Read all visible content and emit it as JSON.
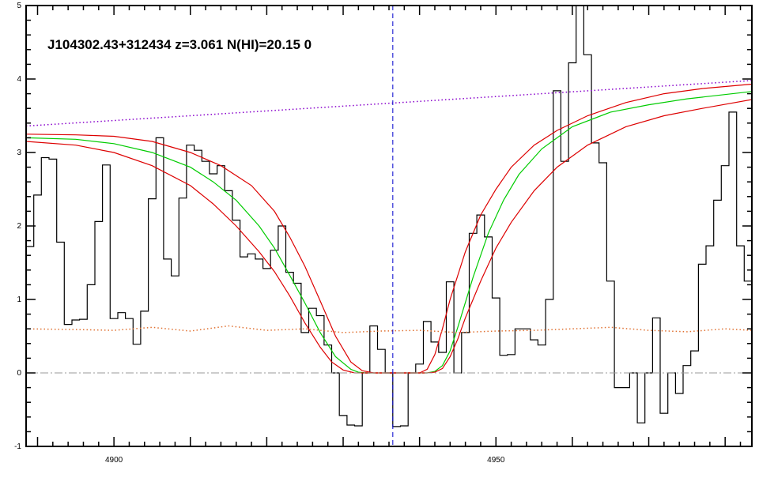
{
  "chart_data": {
    "type": "line",
    "title": "J104302.43+312434 z=3.061 N(HI)=20.15 0",
    "xlabel": "",
    "ylabel": "",
    "xlim": [
      4888.5,
      4983.5
    ],
    "ylim": [
      -1,
      5
    ],
    "x_ticks": [
      4900,
      4950
    ],
    "x_tick_labels": [
      "4900",
      "4950"
    ],
    "y_ticks": [
      -1,
      0,
      1,
      2,
      3,
      4,
      5
    ],
    "y_tick_labels": [
      "-1",
      "0",
      "1",
      "2",
      "3",
      "4",
      "5"
    ],
    "grid": false,
    "legend": "none",
    "line_center_x": 4936.5,
    "series": [
      {
        "style": "steps",
        "color": "#000000",
        "x": [
          4889.0,
          4890.0,
          4891.0,
          4892.0,
          4893.0,
          4894.0,
          4895.0,
          4896.0,
          4897.0,
          4898.0,
          4899.0,
          4900.0,
          4901.0,
          4902.0,
          4903.0,
          4904.0,
          4905.0,
          4906.0,
          4907.0,
          4908.0,
          4909.0,
          4910.0,
          4911.0,
          4912.0,
          4913.0,
          4914.0,
          4915.0,
          4916.0,
          4917.0,
          4918.0,
          4919.0,
          4920.0,
          4921.0,
          4922.0,
          4923.0,
          4924.0,
          4925.0,
          4926.0,
          4927.0,
          4928.0,
          4929.0,
          4930.0,
          4931.0,
          4932.0,
          4933.0,
          4934.0,
          4935.0,
          4936.0,
          4937.0,
          4938.0,
          4939.0,
          4940.0,
          4941.0,
          4942.0,
          4943.0,
          4944.0,
          4945.0,
          4946.0,
          4947.0,
          4948.0,
          4949.0,
          4950.0,
          4951.0,
          4952.0,
          4953.0,
          4954.0,
          4955.0,
          4956.0,
          4957.0,
          4958.0,
          4959.0,
          4960.0,
          4961.0,
          4962.0,
          4963.0,
          4964.0,
          4965.0,
          4966.0,
          4967.0,
          4968.0,
          4969.0,
          4970.0,
          4971.0,
          4972.0,
          4973.0,
          4974.0,
          4975.0,
          4976.0,
          4977.0,
          4978.0,
          4979.0,
          4980.0,
          4981.0,
          4982.0,
          4983.0
        ],
        "y": [
          1.72,
          2.42,
          2.93,
          2.91,
          1.78,
          0.66,
          0.72,
          0.73,
          1.2,
          2.06,
          2.83,
          0.74,
          0.82,
          0.74,
          0.39,
          0.84,
          2.37,
          3.2,
          1.55,
          1.32,
          2.38,
          3.1,
          3.03,
          2.88,
          2.71,
          2.82,
          2.48,
          2.08,
          1.58,
          1.62,
          1.55,
          1.42,
          1.67,
          2.0,
          1.37,
          1.22,
          0.55,
          0.88,
          0.78,
          0.38,
          0.0,
          -0.58,
          -0.71,
          -0.72,
          0.0,
          0.64,
          0.32,
          0.0,
          -0.73,
          -0.72,
          0.0,
          0.12,
          0.7,
          0.42,
          0.28,
          1.24,
          0.0,
          0.55,
          1.9,
          2.15,
          1.85,
          1.02,
          0.24,
          0.25,
          0.6,
          0.6,
          0.45,
          0.38,
          1.0,
          3.84,
          2.88,
          4.22,
          5.05,
          4.33,
          3.13,
          2.86,
          1.25,
          -0.2,
          -0.2,
          0.0,
          -0.68,
          0.0,
          0.75,
          -0.55,
          0.0,
          -0.28,
          0.1,
          0.3,
          1.48,
          1.73,
          2.35,
          2.82,
          3.55,
          1.73,
          1.25
        ]
      },
      {
        "style": "line",
        "color": "#00cc00",
        "x": [
          4888.5,
          4895.0,
          4900.0,
          4905.0,
          4910.0,
          4913.0,
          4916.0,
          4919.0,
          4921.0,
          4923.0,
          4925.0,
          4927.0,
          4929.0,
          4931.0,
          4932.0,
          4933.0,
          4934.0,
          4935.0,
          4936.5,
          4938.0,
          4939.0,
          4940.0,
          4941.0,
          4942.0,
          4943.0,
          4944.0,
          4945.0,
          4947.0,
          4949.0,
          4951.0,
          4953.0,
          4956.0,
          4960.0,
          4965.0,
          4970.0,
          4975.0,
          4983.5
        ],
        "y": [
          3.2,
          3.18,
          3.12,
          3.0,
          2.8,
          2.6,
          2.35,
          2.0,
          1.7,
          1.33,
          0.95,
          0.55,
          0.22,
          0.05,
          0.01,
          0.0,
          0.0,
          0.0,
          0.0,
          0.0,
          0.0,
          0.0,
          0.0,
          0.02,
          0.1,
          0.3,
          0.62,
          1.3,
          1.9,
          2.35,
          2.7,
          3.05,
          3.35,
          3.55,
          3.65,
          3.73,
          3.83
        ]
      },
      {
        "style": "line",
        "color": "#dd0000",
        "x": [
          4888.5,
          4895.0,
          4900.0,
          4905.0,
          4910.0,
          4914.0,
          4918.0,
          4921.0,
          4923.0,
          4925.0,
          4927.0,
          4929.0,
          4931.0,
          4932.5,
          4934.0,
          4936.5,
          4938.5,
          4940.0,
          4941.0,
          4942.0,
          4943.0,
          4944.0,
          4946.0,
          4948.0,
          4950.0,
          4952.0,
          4955.0,
          4958.0,
          4962.0,
          4967.0,
          4972.0,
          4977.0,
          4983.5
        ],
        "y": [
          3.25,
          3.24,
          3.22,
          3.15,
          3.0,
          2.82,
          2.55,
          2.2,
          1.85,
          1.45,
          0.98,
          0.5,
          0.15,
          0.03,
          0.0,
          0.0,
          0.0,
          0.0,
          0.05,
          0.25,
          0.6,
          1.0,
          1.65,
          2.15,
          2.5,
          2.8,
          3.1,
          3.3,
          3.5,
          3.68,
          3.8,
          3.87,
          3.93
        ]
      },
      {
        "style": "line",
        "color": "#dd0000",
        "x": [
          4888.5,
          4895.0,
          4900.0,
          4905.0,
          4910.0,
          4913.0,
          4916.0,
          4919.0,
          4921.0,
          4923.0,
          4925.0,
          4927.0,
          4928.5,
          4930.0,
          4931.5,
          4933.0,
          4934.5,
          4936.5,
          4938.5,
          4940.0,
          4941.0,
          4942.0,
          4943.0,
          4944.0,
          4945.0,
          4946.0,
          4948.0,
          4950.0,
          4952.0,
          4955.0,
          4958.0,
          4962.0,
          4967.0,
          4972.0,
          4977.0,
          4983.5
        ],
        "y": [
          3.15,
          3.1,
          3.0,
          2.82,
          2.55,
          2.3,
          2.0,
          1.65,
          1.38,
          1.05,
          0.68,
          0.35,
          0.15,
          0.04,
          0.0,
          0.0,
          0.0,
          0.0,
          0.0,
          0.0,
          0.0,
          0.01,
          0.06,
          0.22,
          0.46,
          0.75,
          1.25,
          1.7,
          2.05,
          2.48,
          2.8,
          3.1,
          3.35,
          3.5,
          3.6,
          3.72
        ]
      },
      {
        "style": "dotted",
        "color": "#8800cc",
        "x": [
          4888.5,
          4983.5
        ],
        "y": [
          3.36,
          3.98
        ]
      },
      {
        "style": "dotted",
        "color": "#e07030",
        "x": [
          4888.5,
          4895.0,
          4900.0,
          4905.0,
          4910.0,
          4915.0,
          4920.0,
          4925.0,
          4930.0,
          4935.0,
          4940.0,
          4945.0,
          4950.0,
          4955.0,
          4960.0,
          4965.0,
          4970.0,
          4975.0,
          4980.0,
          4983.5
        ],
        "y": [
          0.6,
          0.59,
          0.58,
          0.62,
          0.57,
          0.64,
          0.58,
          0.6,
          0.55,
          0.57,
          0.58,
          0.55,
          0.57,
          0.58,
          0.6,
          0.62,
          0.58,
          0.56,
          0.6,
          0.58
        ]
      },
      {
        "style": "dashdot",
        "color": "#999999",
        "x": [
          4888.5,
          4983.5
        ],
        "y": [
          0,
          0
        ]
      }
    ]
  }
}
